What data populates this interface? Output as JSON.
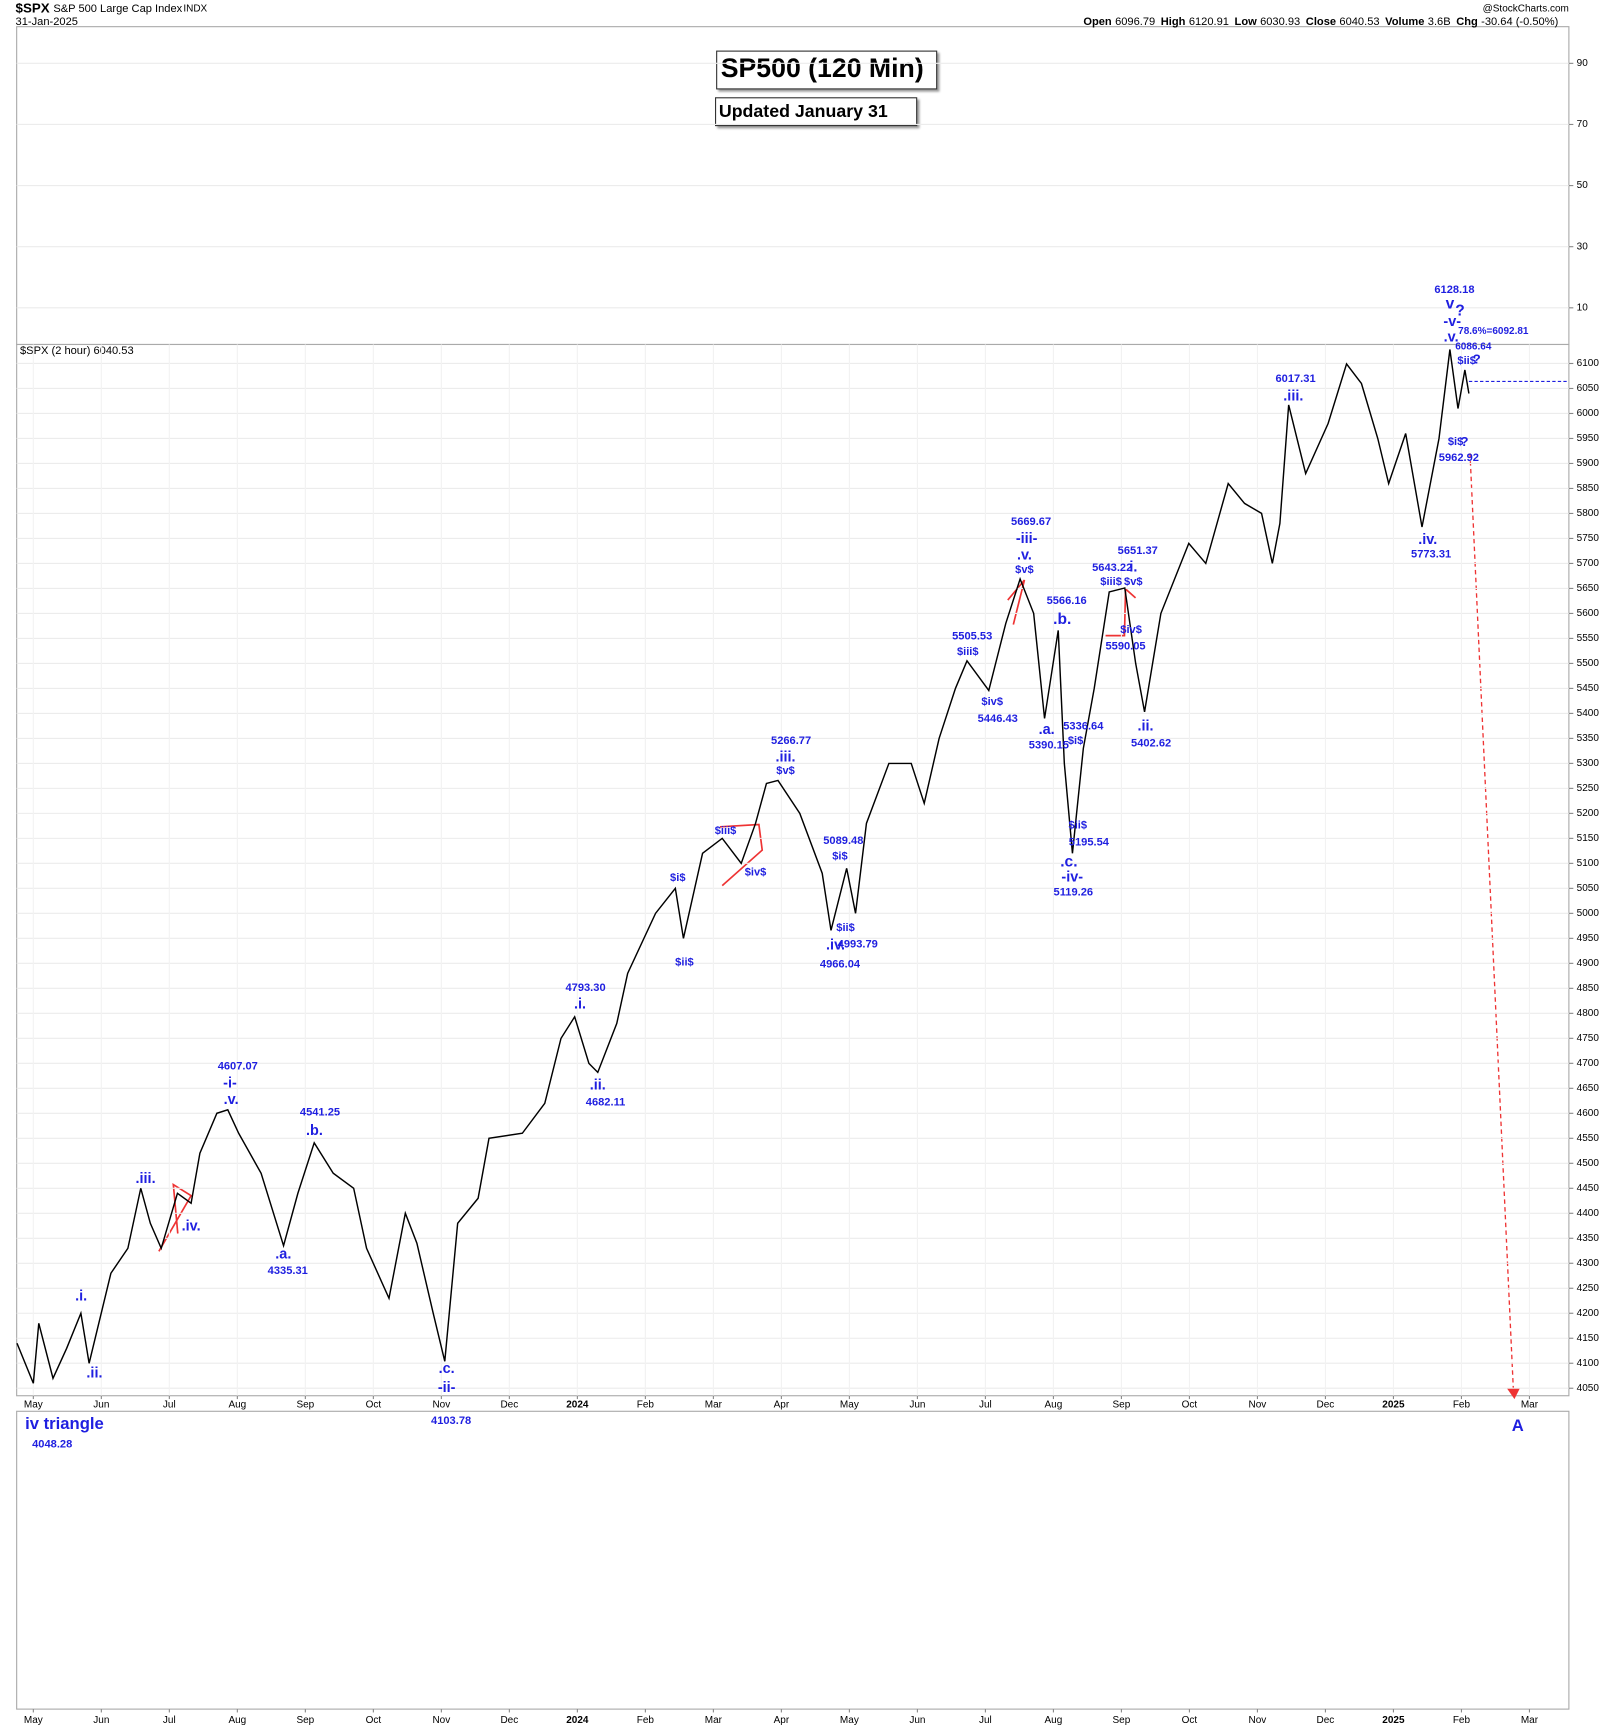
{
  "header": {
    "symbol": "$SPX",
    "name": "S&P 500 Large Cap Index",
    "exchange": "INDX",
    "date": "31-Jan-2025",
    "brand": "@StockCharts.com",
    "stats": [
      {
        "label": "Open",
        "value": "6096.79"
      },
      {
        "label": "High",
        "value": "6120.91"
      },
      {
        "label": "Low",
        "value": "6030.93"
      },
      {
        "label": "Close",
        "value": "6040.53"
      },
      {
        "label": "Volume",
        "value": "3.6B"
      },
      {
        "label": "Chg",
        "value": "-30.64 (-0.50%)"
      }
    ]
  },
  "chart_data": [
    {
      "type": "line",
      "ylim": [
        -2,
        102
      ],
      "yticks": [
        10,
        30,
        50,
        70,
        90
      ],
      "grid": true
    },
    {
      "type": "line",
      "title": "SP500 (120 Min)",
      "subtitle": "Updated January 31",
      "grid": true,
      "x": [
        -0.24,
        0,
        0.08,
        0.29,
        0.49,
        0.7,
        0.82,
        1.14,
        1.39,
        1.58,
        1.72,
        1.88,
        2.12,
        2.32,
        2.45,
        2.7,
        2.86,
        3.02,
        3.35,
        3.68,
        3.89,
        4.13,
        4.41,
        4.71,
        4.9,
        5.23,
        5.47,
        5.64,
        5.88,
        6.05,
        6.24,
        6.54,
        6.7,
        7.19,
        7.52,
        7.76,
        7.96,
        8.17,
        8.3,
        8.58,
        8.74,
        9.15,
        9.44,
        9.56,
        9.84,
        10.13,
        10.41,
        10.62,
        10.78,
        10.95,
        11.27,
        11.6,
        11.73,
        11.96,
        12.09,
        12.25,
        12.58,
        12.91,
        13.1,
        13.32,
        13.56,
        13.73,
        14.05,
        14.3,
        14.51,
        14.71,
        14.87,
        15.07,
        15.16,
        15.28,
        15.44,
        15.6,
        15.82,
        16.05,
        16.21,
        16.34,
        16.58,
        16.99,
        17.24,
        17.57,
        17.81,
        18.06,
        18.22,
        18.33,
        18.46,
        18.71,
        19.04,
        19.31,
        19.53,
        19.77,
        19.93,
        20.18,
        20.42,
        20.67,
        20.83,
        20.95,
        21.05,
        21.11
      ],
      "series": [
        {
          "name": "$SPX (2 hour) 6040.53",
          "color": "#000000",
          "values": [
            4140,
            4060,
            4180,
            4070,
            4130,
            4200,
            4100,
            4280,
            4330,
            4450,
            4380,
            4330,
            4440,
            4420,
            4520,
            4600,
            4607,
            4560,
            4480,
            4335,
            4440,
            4541,
            4480,
            4450,
            4330,
            4230,
            4400,
            4340,
            4200,
            4104,
            4380,
            4430,
            4550,
            4560,
            4620,
            4750,
            4793,
            4700,
            4682,
            4780,
            4880,
            5000,
            5050,
            4950,
            5120,
            5150,
            5100,
            5180,
            5260,
            5266,
            5200,
            5080,
            4966,
            5090,
            5000,
            5180,
            5300,
            5300,
            5220,
            5350,
            5450,
            5505,
            5446,
            5580,
            5669,
            5600,
            5390,
            5566,
            5300,
            5120,
            5330,
            5450,
            5643,
            5651,
            5500,
            5403,
            5600,
            5740,
            5700,
            5860,
            5820,
            5800,
            5700,
            5780,
            6017,
            5880,
            5980,
            6099,
            6060,
            5950,
            5860,
            5960,
            5773,
            5950,
            6128,
            6010,
            6087,
            6040
          ]
        }
      ],
      "reference_line": 6064,
      "xlim": [
        -0.245,
        22.58
      ],
      "xticks": [
        {
          "value": 0,
          "label": "May"
        },
        {
          "value": 1,
          "label": "Jun"
        },
        {
          "value": 2,
          "label": "Jul"
        },
        {
          "value": 3,
          "label": "Aug"
        },
        {
          "value": 4,
          "label": "Sep"
        },
        {
          "value": 5,
          "label": "Oct"
        },
        {
          "value": 6,
          "label": "Nov"
        },
        {
          "value": 7,
          "label": "Dec"
        },
        {
          "value": 8,
          "label": "2024"
        },
        {
          "value": 9,
          "label": "Feb"
        },
        {
          "value": 10,
          "label": "Mar"
        },
        {
          "value": 11,
          "label": "Apr"
        },
        {
          "value": 12,
          "label": "May"
        },
        {
          "value": 13,
          "label": "Jun"
        },
        {
          "value": 14,
          "label": "Jul"
        },
        {
          "value": 15,
          "label": "Aug"
        },
        {
          "value": 16,
          "label": "Sep"
        },
        {
          "value": 17,
          "label": "Oct"
        },
        {
          "value": 18,
          "label": "Nov"
        },
        {
          "value": 19,
          "label": "Dec"
        },
        {
          "value": 20,
          "label": "2025"
        },
        {
          "value": 21,
          "label": "Feb"
        },
        {
          "value": 22,
          "label": "Mar"
        }
      ],
      "ylim": [
        4035,
        6138
      ],
      "yticks": [
        4050,
        4100,
        4150,
        4200,
        4250,
        4300,
        4350,
        4400,
        4450,
        4500,
        4550,
        4600,
        4650,
        4700,
        4750,
        4800,
        4850,
        4900,
        4950,
        5000,
        5050,
        5100,
        5150,
        5200,
        5250,
        5300,
        5350,
        5400,
        5450,
        5500,
        5550,
        5600,
        5650,
        5700,
        5750,
        5800,
        5850,
        5900,
        5950,
        6000,
        6050,
        6100
      ],
      "annotations": [
        "4607.07",
        "-i-",
        ".v.",
        ".iii.",
        ".iv.",
        "4541.25",
        ".b.",
        ".a.",
        "4335.31",
        ".i.",
        ".ii.",
        ".c.",
        "-ii-",
        "4103.78",
        "iv triangle",
        "4048.28",
        "4793.30",
        ".i.",
        ".ii.",
        "4682.11",
        "5266.77",
        ".iii.",
        "$v$",
        "$iii$",
        "$iv$",
        "$i$",
        "$ii$",
        "5089.48",
        "$i$",
        "$ii$",
        ".iv.",
        "4993.79",
        "4966.04",
        "5669.67",
        "-iii-",
        ".v.",
        "$v$",
        "5505.53",
        "$iii$",
        "$iv$",
        "5446.43",
        "5566.16",
        ".b.",
        ".a.",
        "5390.15",
        "5336.64",
        "$i$",
        "$ii$",
        "5195.54",
        ".c.",
        "-iv-",
        "5119.26",
        "5651.37",
        "i.",
        "5643.22",
        "$iii$",
        "$v$",
        "$iv$",
        "5590.05",
        ".ii.",
        "5402.62",
        "6017.31",
        ".iii.",
        "6128.18",
        "v",
        "?",
        "-v-",
        ".v.",
        "78.6%=6092.81",
        "6086.64",
        "$ii$",
        "?",
        "$i$",
        "?",
        "5962.92",
        ".iv.",
        "5773.31",
        "A"
      ]
    },
    {
      "type": "line",
      "xlim": [
        -0.245,
        22.58
      ],
      "xticks": [
        {
          "value": 0,
          "label": "May"
        },
        {
          "value": 1,
          "label": "Jun"
        },
        {
          "value": 2,
          "label": "Jul"
        },
        {
          "value": 3,
          "label": "Aug"
        },
        {
          "value": 4,
          "label": "Sep"
        },
        {
          "value": 5,
          "label": "Oct"
        },
        {
          "value": 6,
          "label": "Nov"
        },
        {
          "value": 7,
          "label": "Dec"
        },
        {
          "value": 8,
          "label": "2024"
        },
        {
          "value": 9,
          "label": "Feb"
        },
        {
          "value": 10,
          "label": "Mar"
        },
        {
          "value": 11,
          "label": "Apr"
        },
        {
          "value": 12,
          "label": "May"
        },
        {
          "value": 13,
          "label": "Jun"
        },
        {
          "value": 14,
          "label": "Jul"
        },
        {
          "value": 15,
          "label": "Aug"
        },
        {
          "value": 16,
          "label": "Sep"
        },
        {
          "value": 17,
          "label": "Oct"
        },
        {
          "value": 18,
          "label": "Nov"
        },
        {
          "value": 19,
          "label": "Dec"
        },
        {
          "value": 20,
          "label": "2025"
        },
        {
          "value": 21,
          "label": "Feb"
        },
        {
          "value": 22,
          "label": "Mar"
        }
      ]
    }
  ]
}
